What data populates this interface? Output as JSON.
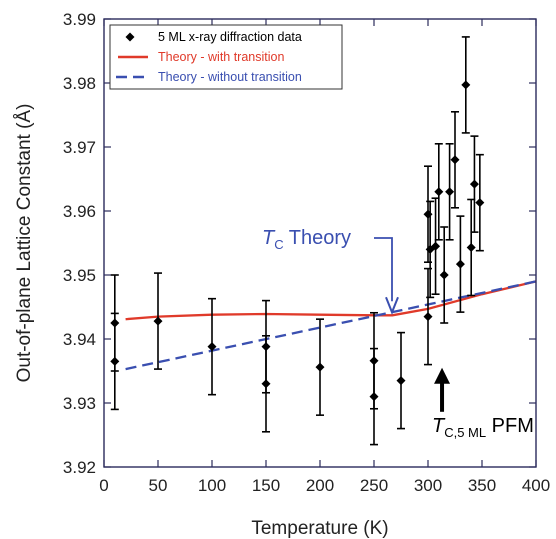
{
  "chart_data": {
    "type": "scatter",
    "xlabel": "Temperature (K)",
    "ylabel": "Out-of-plane Lattice Constant (Å)",
    "xlim": [
      0,
      400
    ],
    "ylim": [
      3.92,
      3.99
    ],
    "xticks": [
      "0",
      "50",
      "100",
      "150",
      "200",
      "250",
      "300",
      "350",
      "400"
    ],
    "yticks": [
      "3.92",
      "3.93",
      "3.94",
      "3.95",
      "3.96",
      "3.97",
      "3.98",
      "3.99"
    ],
    "legend_position": "top-left",
    "series": [
      {
        "name": "5 ML x-ray diffraction data",
        "kind": "points-with-errorbars",
        "color": "#000000",
        "points": [
          {
            "x": 10,
            "y": 3.9425,
            "err": 0.0075
          },
          {
            "x": 10,
            "y": 3.9365,
            "err": 0.0075
          },
          {
            "x": 50,
            "y": 3.9428,
            "err": 0.0075
          },
          {
            "x": 100,
            "y": 3.9388,
            "err": 0.0075
          },
          {
            "x": 150,
            "y": 3.9388,
            "err": 0.0072
          },
          {
            "x": 150,
            "y": 3.933,
            "err": 0.0075
          },
          {
            "x": 200,
            "y": 3.9356,
            "err": 0.0075
          },
          {
            "x": 250,
            "y": 3.9366,
            "err": 0.0075
          },
          {
            "x": 250,
            "y": 3.931,
            "err": 0.0075
          },
          {
            "x": 275,
            "y": 3.9335,
            "err": 0.0075
          },
          {
            "x": 300,
            "y": 3.9435,
            "err": 0.0075
          },
          {
            "x": 300,
            "y": 3.9595,
            "err": 0.0075
          },
          {
            "x": 302,
            "y": 3.954,
            "err": 0.0075
          },
          {
            "x": 307,
            "y": 3.9545,
            "err": 0.0075
          },
          {
            "x": 310,
            "y": 3.963,
            "err": 0.0075
          },
          {
            "x": 315,
            "y": 3.95,
            "err": 0.0075
          },
          {
            "x": 320,
            "y": 3.963,
            "err": 0.0075
          },
          {
            "x": 325,
            "y": 3.968,
            "err": 0.0075
          },
          {
            "x": 330,
            "y": 3.9517,
            "err": 0.0075
          },
          {
            "x": 335,
            "y": 3.9797,
            "err": 0.0075
          },
          {
            "x": 340,
            "y": 3.9543,
            "err": 0.0075
          },
          {
            "x": 343,
            "y": 3.9642,
            "err": 0.0075
          },
          {
            "x": 348,
            "y": 3.9613,
            "err": 0.0075
          }
        ]
      },
      {
        "name": "Theory - with transition",
        "kind": "solid-line",
        "color": "#e03a2a",
        "points": [
          [
            20,
            3.9431
          ],
          [
            50,
            3.9435
          ],
          [
            100,
            3.9438
          ],
          [
            150,
            3.9439
          ],
          [
            200,
            3.9438
          ],
          [
            250,
            3.9437
          ],
          [
            267,
            3.9437
          ],
          [
            300,
            3.9447
          ],
          [
            350,
            3.947
          ],
          [
            400,
            3.949
          ]
        ]
      },
      {
        "name": "Theory - without transition",
        "kind": "dashed-line",
        "color": "#3a4fb0",
        "points": [
          [
            20,
            3.9353
          ],
          [
            400,
            3.949
          ]
        ]
      }
    ],
    "annotations": [
      {
        "id": "tc-theory",
        "main": "T",
        "sub": "C",
        "rest": " Theory",
        "color": "#3a4fb0",
        "x": 267,
        "y": 3.9437
      },
      {
        "id": "tc-pfm",
        "main": "T",
        "sub": "C,5 ML",
        "rest": " PFM",
        "color": "#000000",
        "x": 313,
        "y": 3.9355
      }
    ]
  }
}
